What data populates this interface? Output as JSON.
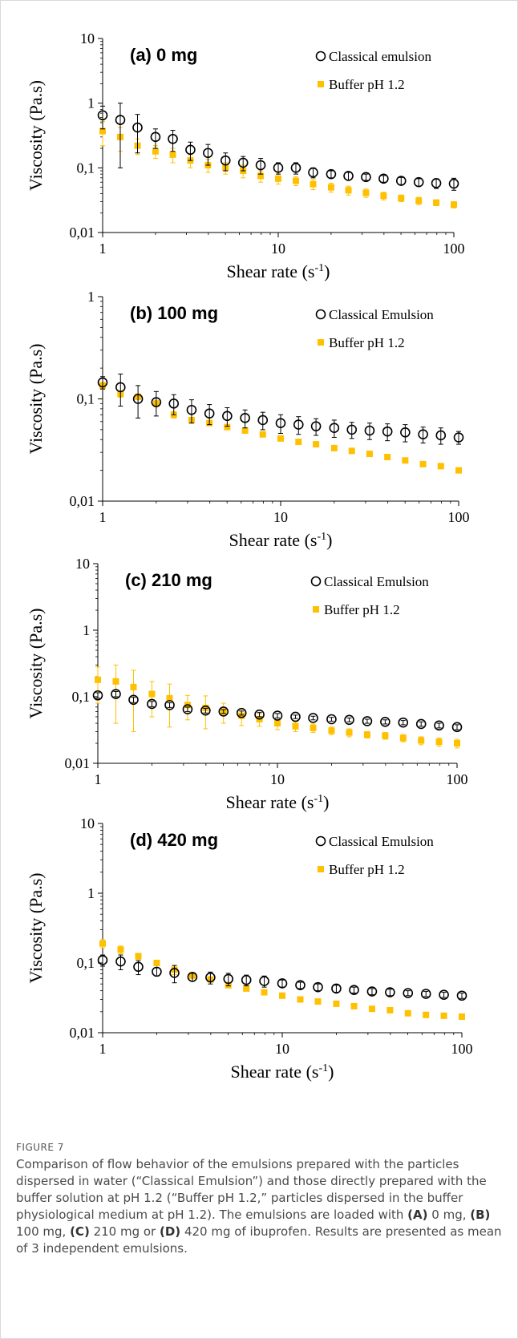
{
  "chart_data": [
    {
      "type": "scatter",
      "title": "(a) 0 mg",
      "xlabel": "Shear rate (s-1)",
      "ylabel": "Viscosity (Pa.s)",
      "xscale": "log",
      "yscale": "log",
      "xlim": [
        1,
        100
      ],
      "ylim": [
        0.01,
        10
      ],
      "xticks": [
        "1",
        "10",
        "100"
      ],
      "yticks": [
        "0,01",
        "0,1",
        "1",
        "10"
      ],
      "legend_placement": "top-right",
      "x": [
        1,
        1.26,
        1.58,
        2,
        2.51,
        3.16,
        3.98,
        5.01,
        6.31,
        7.94,
        10,
        12.6,
        15.8,
        20,
        25.1,
        31.6,
        39.8,
        50.1,
        63.1,
        79.4,
        100
      ],
      "series": [
        {
          "name": "Classical emulsion",
          "marker": "open-circle",
          "color": "#000000",
          "values": [
            0.65,
            0.55,
            0.42,
            0.3,
            0.28,
            0.19,
            0.17,
            0.13,
            0.12,
            0.11,
            0.1,
            0.1,
            0.085,
            0.08,
            0.075,
            0.072,
            0.068,
            0.063,
            0.06,
            0.058,
            0.057
          ],
          "errors": [
            0.25,
            0.45,
            0.25,
            0.1,
            0.1,
            0.06,
            0.06,
            0.04,
            0.03,
            0.03,
            0.02,
            0.02,
            0.015,
            0.01,
            0.01,
            0.008,
            0.008,
            0.008,
            0.008,
            0.01,
            0.012
          ]
        },
        {
          "name": "Buffer pH 1.2",
          "marker": "filled-square",
          "color": "#FFC000",
          "values": [
            0.37,
            0.3,
            0.22,
            0.18,
            0.16,
            0.13,
            0.11,
            0.1,
            0.09,
            0.075,
            0.068,
            0.063,
            0.056,
            0.05,
            0.045,
            0.041,
            0.037,
            0.034,
            0.031,
            0.029,
            0.027
          ],
          "errors": [
            0.15,
            0.12,
            0.06,
            0.04,
            0.04,
            0.03,
            0.025,
            0.02,
            0.02,
            0.015,
            0.012,
            0.01,
            0.01,
            0.008,
            0.007,
            0.006,
            0.005,
            0.004,
            0.004,
            0.003,
            0.003
          ]
        }
      ]
    },
    {
      "type": "scatter",
      "title": "(b) 100 mg",
      "xlabel": "Shear rate (s-1)",
      "ylabel": "Viscosity (Pa.s)",
      "xscale": "log",
      "yscale": "log",
      "xlim": [
        1,
        100
      ],
      "ylim": [
        0.01,
        1
      ],
      "xticks": [
        "1",
        "10",
        "100"
      ],
      "yticks": [
        "0,01",
        "0,1",
        "1"
      ],
      "legend_placement": "top-right",
      "x": [
        1,
        1.26,
        1.58,
        2,
        2.51,
        3.16,
        3.98,
        5.01,
        6.31,
        7.94,
        10,
        12.6,
        15.8,
        20,
        25.1,
        31.6,
        39.8,
        50.1,
        63.1,
        79.4,
        100
      ],
      "series": [
        {
          "name": "Classical Emulsion",
          "marker": "open-circle",
          "color": "#000000",
          "values": [
            0.145,
            0.13,
            0.1,
            0.093,
            0.09,
            0.078,
            0.072,
            0.068,
            0.065,
            0.062,
            0.058,
            0.056,
            0.054,
            0.052,
            0.05,
            0.049,
            0.048,
            0.047,
            0.045,
            0.044,
            0.042
          ],
          "errors": [
            0.02,
            0.045,
            0.035,
            0.025,
            0.02,
            0.02,
            0.016,
            0.014,
            0.013,
            0.012,
            0.012,
            0.011,
            0.01,
            0.01,
            0.009,
            0.009,
            0.009,
            0.009,
            0.008,
            0.008,
            0.006
          ]
        },
        {
          "name": "Buffer pH 1.2",
          "marker": "filled-square",
          "color": "#FFC000",
          "values": [
            0.135,
            0.112,
            0.105,
            0.09,
            0.07,
            0.062,
            0.058,
            0.053,
            0.049,
            0.045,
            0.041,
            0.038,
            0.036,
            0.033,
            0.031,
            0.029,
            0.027,
            0.025,
            0.023,
            0.022,
            0.02
          ],
          "errors": [
            0.01,
            0.008,
            0.007,
            0.006,
            0.005,
            0.004,
            0.003,
            0.002,
            0.002,
            0.002,
            0.0015,
            0.0015,
            0.0015,
            0.001,
            0.001,
            0.001,
            0.001,
            0.001,
            0.001,
            0.001,
            0.001
          ]
        }
      ]
    },
    {
      "type": "scatter",
      "title": "(c) 210 mg",
      "xlabel": "Shear rate (s-1)",
      "ylabel": "Viscosity (Pa.s)",
      "xscale": "log",
      "yscale": "log",
      "xlim": [
        1,
        100
      ],
      "ylim": [
        0.01,
        10
      ],
      "xticks": [
        "1",
        "10",
        "100"
      ],
      "yticks": [
        "0,01",
        "0,1",
        "1",
        "10"
      ],
      "legend_placement": "top-right",
      "x": [
        1,
        1.26,
        1.58,
        2,
        2.51,
        3.16,
        3.98,
        5.01,
        6.31,
        7.94,
        10,
        12.6,
        15.8,
        20,
        25.1,
        31.6,
        39.8,
        50.1,
        63.1,
        79.4,
        100
      ],
      "series": [
        {
          "name": "Classical Emulsion",
          "marker": "open-circle",
          "color": "#000000",
          "values": [
            0.105,
            0.11,
            0.09,
            0.078,
            0.075,
            0.065,
            0.062,
            0.06,
            0.057,
            0.054,
            0.052,
            0.05,
            0.048,
            0.046,
            0.045,
            0.043,
            0.042,
            0.041,
            0.039,
            0.037,
            0.035
          ],
          "errors": [
            0.01,
            0.01,
            0.008,
            0.007,
            0.006,
            0.005,
            0.005,
            0.004,
            0.004,
            0.004,
            0.004,
            0.003,
            0.003,
            0.003,
            0.003,
            0.003,
            0.003,
            0.003,
            0.003,
            0.003,
            0.003
          ]
        },
        {
          "name": "Buffer pH 1.2",
          "marker": "filled-square",
          "color": "#FFC000",
          "values": [
            0.18,
            0.17,
            0.14,
            0.11,
            0.095,
            0.075,
            0.068,
            0.06,
            0.052,
            0.046,
            0.04,
            0.036,
            0.034,
            0.031,
            0.029,
            0.027,
            0.026,
            0.024,
            0.022,
            0.021,
            0.02
          ],
          "errors": [
            0.1,
            0.13,
            0.11,
            0.06,
            0.06,
            0.03,
            0.035,
            0.02,
            0.015,
            0.01,
            0.008,
            0.006,
            0.005,
            0.004,
            0.004,
            0.003,
            0.003,
            0.003,
            0.003,
            0.003,
            0.003
          ]
        }
      ]
    },
    {
      "type": "scatter",
      "title": "(d) 420 mg",
      "xlabel": "Shear rate (s-1)",
      "ylabel": "Viscosity (Pa.s)",
      "xscale": "log",
      "yscale": "log",
      "xlim": [
        1,
        100
      ],
      "ylim": [
        0.01,
        10
      ],
      "xticks": [
        "1",
        "10",
        "100"
      ],
      "yticks": [
        "0,01",
        "0,1",
        "1",
        "10"
      ],
      "legend_placement": "top-right",
      "x": [
        1,
        1.26,
        1.58,
        2,
        2.51,
        3.16,
        3.98,
        5.01,
        6.31,
        7.94,
        10,
        12.6,
        15.8,
        20,
        25.1,
        31.6,
        39.8,
        50.1,
        63.1,
        79.4,
        100
      ],
      "series": [
        {
          "name": "Classical Emulsion",
          "marker": "open-circle",
          "color": "#000000",
          "values": [
            0.11,
            0.105,
            0.088,
            0.075,
            0.072,
            0.063,
            0.062,
            0.059,
            0.057,
            0.055,
            0.051,
            0.048,
            0.045,
            0.043,
            0.041,
            0.039,
            0.038,
            0.037,
            0.036,
            0.035,
            0.034
          ],
          "errors": [
            0.02,
            0.025,
            0.02,
            0.01,
            0.02,
            0.008,
            0.012,
            0.012,
            0.01,
            0.01,
            0.006,
            0.005,
            0.005,
            0.005,
            0.004,
            0.004,
            0.004,
            0.003,
            0.003,
            0.003,
            0.003
          ]
        },
        {
          "name": "Buffer pH 1.2",
          "marker": "filled-square",
          "color": "#FFC000",
          "values": [
            0.19,
            0.155,
            0.125,
            0.1,
            0.08,
            0.066,
            0.058,
            0.048,
            0.043,
            0.038,
            0.034,
            0.03,
            0.028,
            0.026,
            0.024,
            0.022,
            0.021,
            0.019,
            0.018,
            0.0175,
            0.017
          ],
          "errors": [
            0.025,
            0.02,
            0.012,
            0.008,
            0.012,
            0.006,
            0.005,
            0.004,
            0.003,
            0.003,
            0.002,
            0.002,
            0.002,
            0.002,
            0.002,
            0.001,
            0.001,
            0.001,
            0.001,
            0.001,
            0.001
          ]
        }
      ]
    }
  ],
  "caption": {
    "label": "FIGURE 7",
    "text_1": "Comparison of flow behavior of the emulsions prepared with the particles dispersed in water (“Classical Emulsion”) and those directly prepared with the buffer solution at pH 1.2 (“Buffer pH 1.2,” particles dispersed in the buffer physiological medium at pH 1.2). The emulsions are loaded with ",
    "bold_a": "(A)",
    "text_2": " 0 mg, ",
    "bold_b": "(B)",
    "text_3": " 100 mg, ",
    "bold_c": "(C)",
    "text_4": " 210 mg or ",
    "bold_d": "(D)",
    "text_5": " 420 mg of ibuprofen. Results are presented as mean of 3 independent emulsions."
  }
}
